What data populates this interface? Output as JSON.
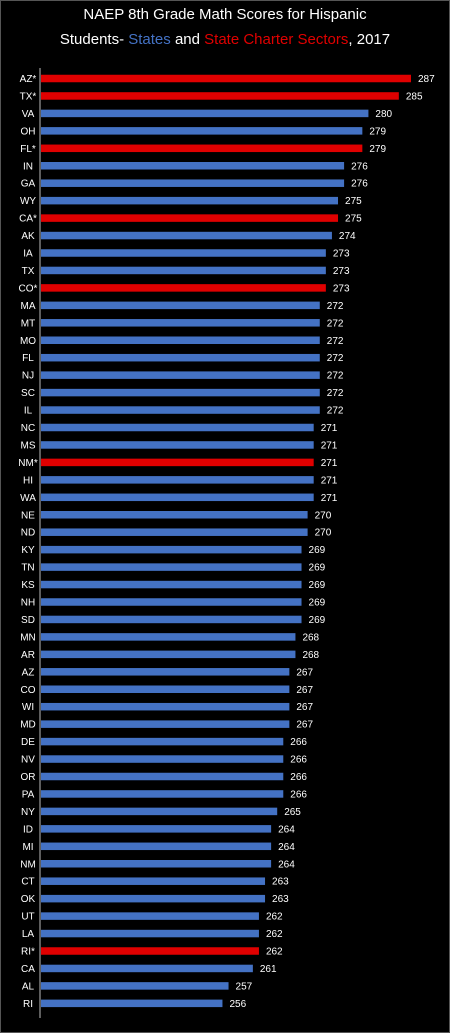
{
  "title_line1": "NAEP 8th Grade Math Scores for Hispanic",
  "title_line2_prefix": "Students- ",
  "title_line2_states": "States",
  "title_line2_and": " and ",
  "title_line2_charter": "State Charter Sectors",
  "title_line2_suffix": ", 2017",
  "colors": {
    "state": "#4472C4",
    "charter": "#E00000",
    "background": "#000000"
  },
  "chart_data": {
    "type": "bar",
    "orientation": "horizontal",
    "title": "NAEP 8th Grade Math Scores for Hispanic Students- States and State Charter Sectors, 2017",
    "categories": [
      "AZ*",
      "TX*",
      "VA",
      "OH",
      "FL*",
      "IN",
      "GA",
      "WY",
      "CA*",
      "AK",
      "IA",
      "TX",
      "CO*",
      "MA",
      "MT",
      "MO",
      "FL",
      "NJ",
      "SC",
      "IL",
      "NC",
      "MS",
      "NM*",
      "HI",
      "WA",
      "NE",
      "ND",
      "KY",
      "TN",
      "KS",
      "NH",
      "SD",
      "MN",
      "AR",
      "AZ",
      "CO",
      "WI",
      "MD",
      "DE",
      "NV",
      "OR",
      "PA",
      "NY",
      "ID",
      "MI",
      "NM",
      "CT",
      "OK",
      "UT",
      "LA",
      "RI*",
      "CA",
      "AL",
      "RI"
    ],
    "values": [
      287,
      285,
      280,
      279,
      279,
      276,
      276,
      275,
      275,
      274,
      273,
      273,
      273,
      272,
      272,
      272,
      272,
      272,
      272,
      272,
      271,
      271,
      271,
      271,
      271,
      270,
      270,
      269,
      269,
      269,
      269,
      269,
      268,
      268,
      267,
      267,
      267,
      267,
      266,
      266,
      266,
      266,
      265,
      264,
      264,
      264,
      263,
      263,
      262,
      262,
      262,
      261,
      257,
      256
    ],
    "charter": [
      true,
      true,
      false,
      false,
      true,
      false,
      false,
      false,
      true,
      false,
      false,
      false,
      true,
      false,
      false,
      false,
      false,
      false,
      false,
      false,
      false,
      false,
      true,
      false,
      false,
      false,
      false,
      false,
      false,
      false,
      false,
      false,
      false,
      false,
      false,
      false,
      false,
      false,
      false,
      false,
      false,
      false,
      false,
      false,
      false,
      false,
      false,
      false,
      false,
      false,
      true,
      false,
      false,
      false
    ],
    "series": [
      {
        "name": "States"
      },
      {
        "name": "State Charter Sectors"
      }
    ],
    "xlim": [
      226,
      287
    ],
    "legend": "in title"
  }
}
